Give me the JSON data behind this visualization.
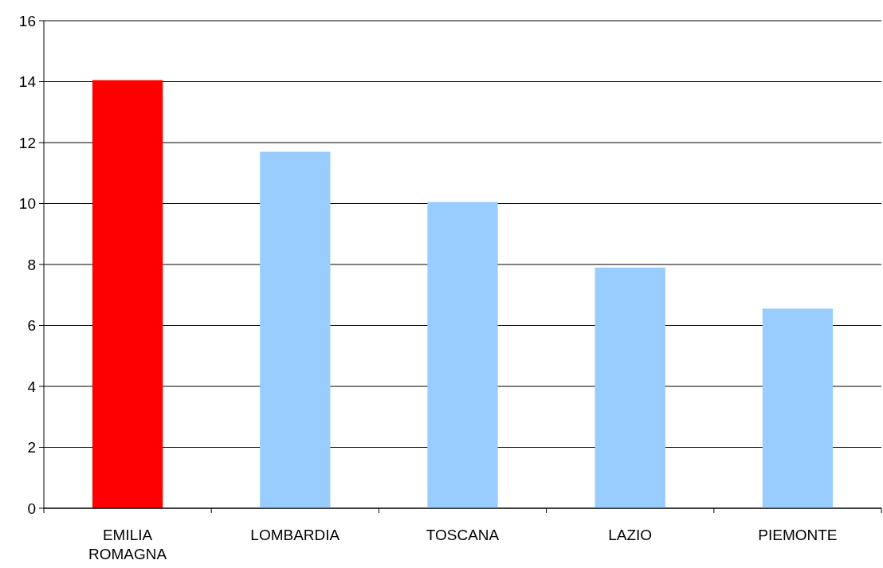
{
  "chart_data": {
    "type": "bar",
    "categories": [
      "EMILIA ROMAGNA",
      "LOMBARDIA",
      "TOSCANA",
      "LAZIO",
      "PIEMONTE"
    ],
    "values": [
      14.05,
      11.7,
      10.05,
      7.9,
      6.55
    ],
    "colors": [
      "#ff0000",
      "#99ccff",
      "#99ccff",
      "#99ccff",
      "#99ccff"
    ],
    "ylim": [
      0,
      16
    ],
    "yticks": [
      0,
      2,
      4,
      6,
      8,
      10,
      12,
      14,
      16
    ],
    "grid": "y"
  }
}
